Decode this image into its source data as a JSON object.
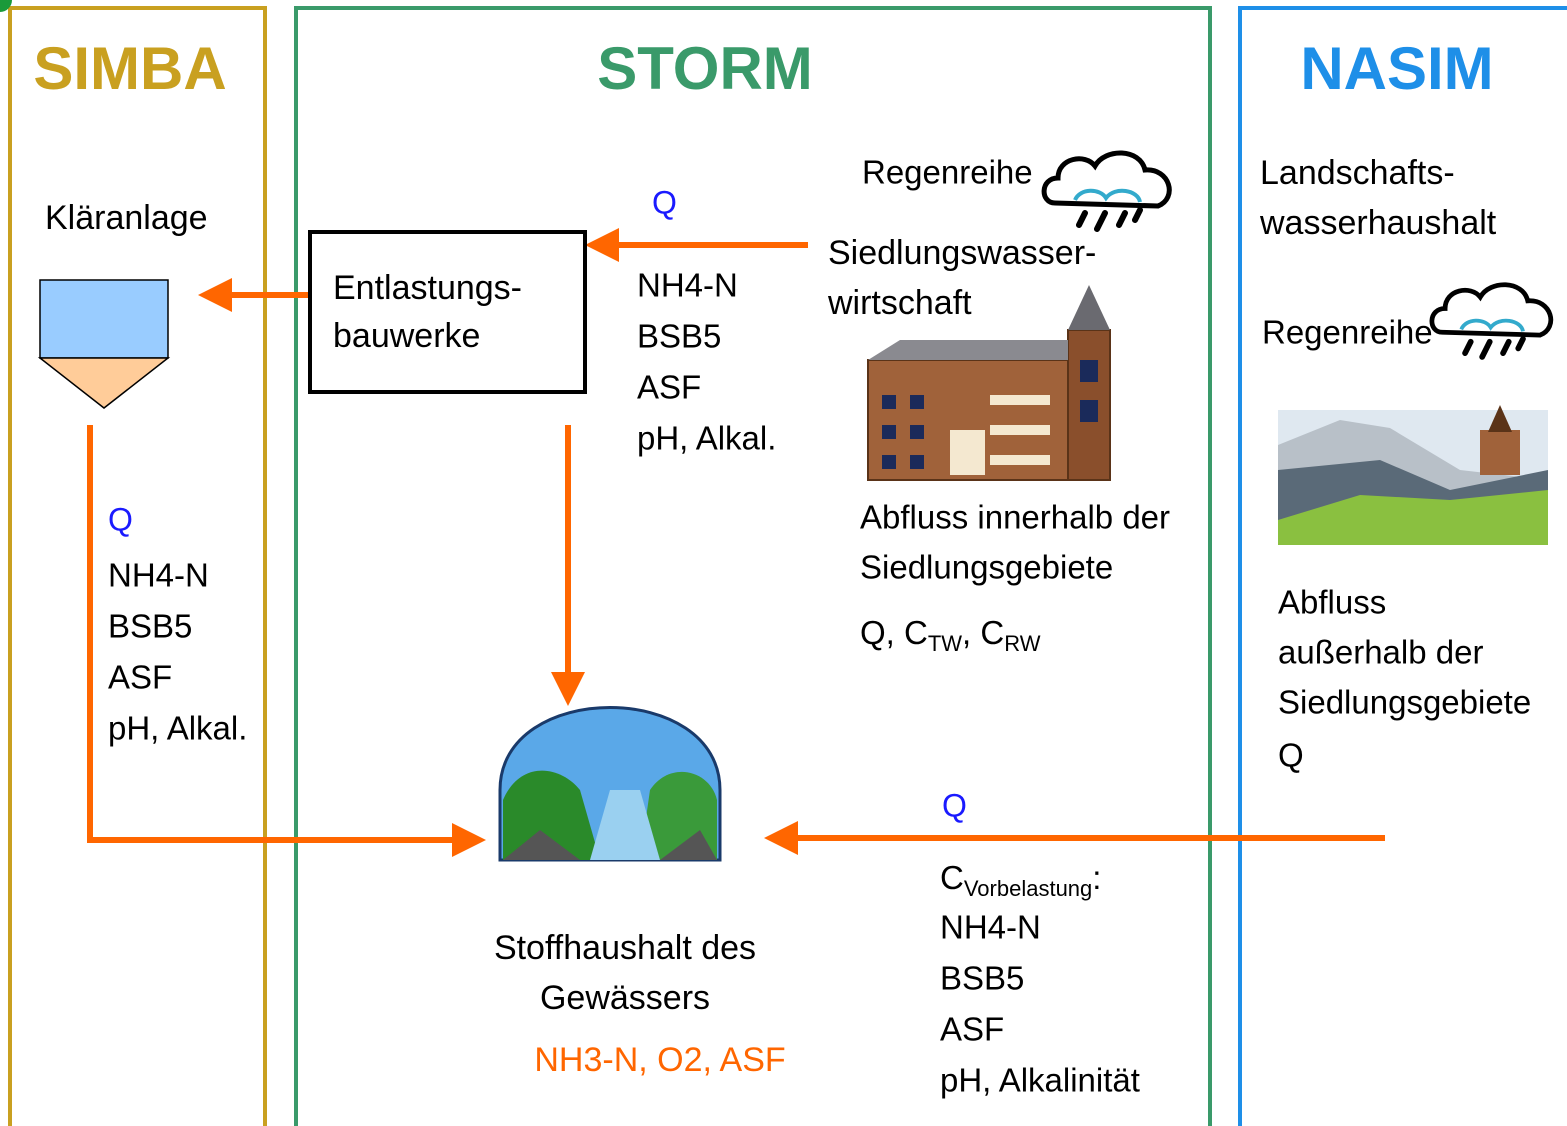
{
  "simba": {
    "title": "SIMBA",
    "label": "Kläranlage",
    "flow": "Q",
    "params": [
      "NH4-N",
      "BSB5",
      "ASF",
      "pH, Alkal."
    ]
  },
  "storm": {
    "title": "STORM",
    "box": [
      "Entlastungs-",
      "bauwerke"
    ],
    "flow": "Q",
    "params": [
      "NH4-N",
      "BSB5",
      "ASF",
      "pH, Alkal."
    ],
    "rain": "Regenreihe",
    "settlement": [
      "Siedlungswasser-",
      "wirtschaft"
    ],
    "runoff": [
      "Abfluss innerhalb der",
      "Siedlungsgebiete"
    ],
    "runoff_vars": [
      "Q, C",
      "TW",
      ", C",
      "RW"
    ],
    "water_body": [
      "Stoffhaushalt des",
      "Gewässers"
    ],
    "water_outputs": "NH3-N, O2, ASF",
    "inflow_flow": "Q",
    "inflow_load": [
      "C",
      "Vorbelastung",
      ":"
    ],
    "inflow_params": [
      "NH4-N",
      "BSB5",
      "ASF",
      "pH, Alkalinität"
    ]
  },
  "nasim": {
    "title": "NASIM",
    "label": [
      "Landschafts-",
      "wasserhaushalt"
    ],
    "rain": "Regenreihe",
    "runoff": [
      "Abfluss",
      "außerhalb der",
      "Siedlungsgebiete",
      "Q"
    ]
  }
}
